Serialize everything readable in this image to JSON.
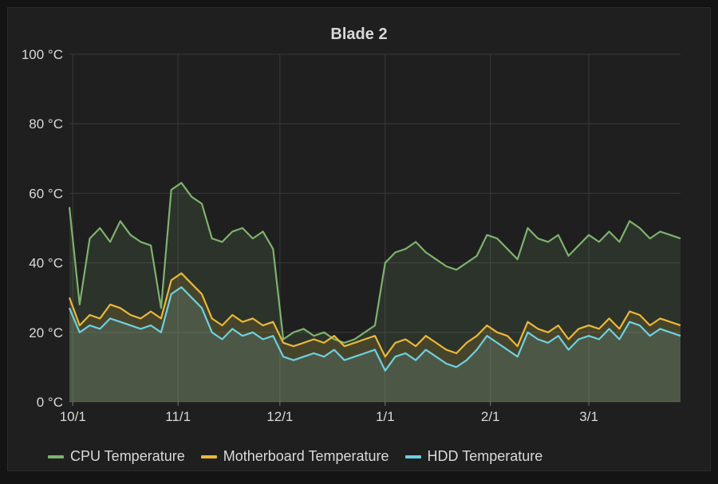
{
  "panel": {
    "title": "Blade 2"
  },
  "chart_data": {
    "type": "line",
    "title": "Blade 2",
    "ylim": [
      0,
      100
    ],
    "y_ticks": [
      {
        "value": 0,
        "label": "0 °C"
      },
      {
        "value": 20,
        "label": "20 °C"
      },
      {
        "value": 40,
        "label": "40 °C"
      },
      {
        "value": 60,
        "label": "60 °C"
      },
      {
        "value": 80,
        "label": "80 °C"
      },
      {
        "value": 100,
        "label": "100 °C"
      }
    ],
    "x_ticks": [
      {
        "x": "2015-10-01",
        "label": "10/1"
      },
      {
        "x": "2015-11-01",
        "label": "11/1"
      },
      {
        "x": "2015-12-01",
        "label": "12/1"
      },
      {
        "x": "2016-01-01",
        "label": "1/1"
      },
      {
        "x": "2016-02-01",
        "label": "2/1"
      },
      {
        "x": "2016-03-01",
        "label": "3/1"
      }
    ],
    "xlim": [
      "2015-09-30",
      "2016-03-28"
    ],
    "x": [
      "2015-09-30",
      "2015-10-03",
      "2015-10-06",
      "2015-10-09",
      "2015-10-12",
      "2015-10-15",
      "2015-10-18",
      "2015-10-21",
      "2015-10-24",
      "2015-10-27",
      "2015-10-30",
      "2015-11-02",
      "2015-11-05",
      "2015-11-08",
      "2015-11-11",
      "2015-11-14",
      "2015-11-17",
      "2015-11-20",
      "2015-11-23",
      "2015-11-26",
      "2015-11-29",
      "2015-12-02",
      "2015-12-05",
      "2015-12-08",
      "2015-12-11",
      "2015-12-14",
      "2015-12-17",
      "2015-12-20",
      "2015-12-23",
      "2015-12-26",
      "2015-12-29",
      "2016-01-01",
      "2016-01-04",
      "2016-01-07",
      "2016-01-10",
      "2016-01-13",
      "2016-01-16",
      "2016-01-19",
      "2016-01-22",
      "2016-01-25",
      "2016-01-28",
      "2016-01-31",
      "2016-02-03",
      "2016-02-06",
      "2016-02-09",
      "2016-02-12",
      "2016-02-15",
      "2016-02-18",
      "2016-02-21",
      "2016-02-24",
      "2016-02-27",
      "2016-03-01",
      "2016-03-04",
      "2016-03-07",
      "2016-03-10",
      "2016-03-13",
      "2016-03-16",
      "2016-03-19",
      "2016-03-22",
      "2016-03-25",
      "2016-03-28"
    ],
    "series": [
      {
        "name": "CPU Temperature",
        "color": "#7eb26d",
        "values": [
          56,
          28,
          47,
          50,
          46,
          52,
          48,
          46,
          45,
          27,
          61,
          63,
          59,
          57,
          47,
          46,
          49,
          50,
          47,
          49,
          44,
          18,
          20,
          21,
          19,
          20,
          18,
          17,
          18,
          20,
          22,
          40,
          43,
          44,
          46,
          43,
          41,
          39,
          38,
          40,
          42,
          48,
          47,
          44,
          41,
          50,
          47,
          46,
          48,
          42,
          45,
          48,
          46,
          49,
          46,
          52,
          50,
          47,
          49,
          48,
          47
        ]
      },
      {
        "name": "Motherboard Temperature",
        "color": "#eab839",
        "values": [
          30,
          22,
          25,
          24,
          28,
          27,
          25,
          24,
          26,
          24,
          35,
          37,
          34,
          31,
          24,
          22,
          25,
          23,
          24,
          22,
          23,
          17,
          16,
          17,
          18,
          17,
          19,
          16,
          17,
          18,
          19,
          13,
          17,
          18,
          16,
          19,
          17,
          15,
          14,
          17,
          19,
          22,
          20,
          19,
          16,
          23,
          21,
          20,
          22,
          18,
          21,
          22,
          21,
          24,
          21,
          26,
          25,
          22,
          24,
          23,
          22
        ]
      },
      {
        "name": "HDD Temperature",
        "color": "#6ed0e0",
        "values": [
          27,
          20,
          22,
          21,
          24,
          23,
          22,
          21,
          22,
          20,
          31,
          33,
          30,
          27,
          20,
          18,
          21,
          19,
          20,
          18,
          19,
          13,
          12,
          13,
          14,
          13,
          15,
          12,
          13,
          14,
          15,
          9,
          13,
          14,
          12,
          15,
          13,
          11,
          10,
          12,
          15,
          19,
          17,
          15,
          13,
          20,
          18,
          17,
          19,
          15,
          18,
          19,
          18,
          21,
          18,
          23,
          22,
          19,
          21,
          20,
          19
        ]
      }
    ],
    "legend_position": "bottom-left",
    "grid": true
  }
}
